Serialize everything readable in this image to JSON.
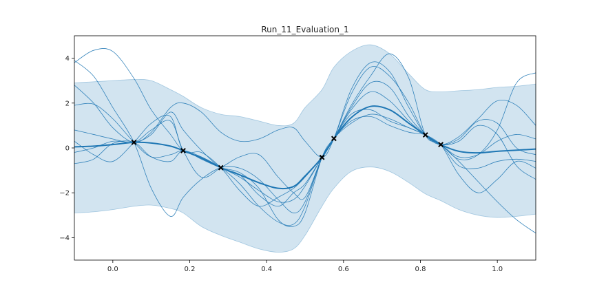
{
  "chart_data": {
    "type": "line",
    "title": "Run_11_Evaluation_1",
    "xlabel": "",
    "ylabel": "",
    "xlim": [
      -0.1,
      1.1
    ],
    "ylim": [
      -5.0,
      5.0
    ],
    "x_ticks": [
      "0.0",
      "0.2",
      "0.4",
      "0.6",
      "0.8",
      "1.0"
    ],
    "y_ticks": [
      "4",
      "2",
      "0",
      "−2",
      "−4"
    ],
    "grid": false,
    "legend": "none",
    "colors": {
      "line": "#1f77b4",
      "band": "#1f77b4",
      "marker": "#000000"
    },
    "observations": {
      "x": [
        0.055,
        0.183,
        0.281,
        0.544,
        0.575,
        0.813,
        0.853
      ],
      "y": [
        0.25,
        -0.12,
        -0.88,
        -0.42,
        0.42,
        0.58,
        0.15
      ]
    },
    "mean": {
      "x": [
        -0.1,
        -0.05,
        0.0,
        0.055,
        0.1,
        0.15,
        0.183,
        0.23,
        0.281,
        0.33,
        0.38,
        0.43,
        0.47,
        0.5,
        0.544,
        0.575,
        0.62,
        0.67,
        0.72,
        0.77,
        0.813,
        0.853,
        0.9,
        0.95,
        1.0,
        1.05,
        1.1
      ],
      "y": [
        0.05,
        0.08,
        0.15,
        0.25,
        0.22,
        0.08,
        -0.12,
        -0.45,
        -0.88,
        -1.2,
        -1.55,
        -1.8,
        -1.72,
        -1.25,
        -0.42,
        0.42,
        1.35,
        1.85,
        1.7,
        1.1,
        0.58,
        0.15,
        -0.15,
        -0.22,
        -0.15,
        -0.1,
        -0.05
      ]
    },
    "band": {
      "x": [
        -0.1,
        -0.05,
        0.0,
        0.055,
        0.1,
        0.15,
        0.183,
        0.23,
        0.281,
        0.33,
        0.38,
        0.43,
        0.47,
        0.5,
        0.544,
        0.575,
        0.62,
        0.67,
        0.72,
        0.77,
        0.813,
        0.853,
        0.9,
        0.95,
        1.0,
        1.05,
        1.1
      ],
      "upper": [
        2.9,
        2.95,
        3.0,
        3.05,
        3.0,
        2.6,
        2.3,
        1.8,
        1.5,
        1.4,
        1.2,
        1.0,
        1.1,
        1.8,
        2.6,
        3.6,
        4.3,
        4.6,
        4.2,
        3.3,
        2.6,
        2.5,
        2.55,
        2.6,
        2.7,
        2.75,
        2.85
      ],
      "lower": [
        -2.9,
        -2.85,
        -2.75,
        -2.6,
        -2.55,
        -2.7,
        -2.9,
        -3.5,
        -3.9,
        -4.2,
        -4.5,
        -4.65,
        -4.5,
        -3.9,
        -2.6,
        -1.8,
        -1.05,
        -0.85,
        -1.05,
        -1.55,
        -2.05,
        -2.35,
        -2.75,
        -3.0,
        -3.1,
        -3.05,
        -2.95
      ]
    },
    "samples": [
      {
        "x": [
          -0.1,
          -0.05,
          0.0,
          0.055,
          0.1,
          0.15,
          0.183,
          0.23,
          0.281,
          0.33,
          0.38,
          0.43,
          0.47,
          0.5,
          0.544,
          0.575,
          0.62,
          0.67,
          0.72,
          0.77,
          0.813,
          0.853,
          0.9,
          0.95,
          1.0,
          1.05,
          1.1
        ],
        "y": [
          3.8,
          4.35,
          4.3,
          3.1,
          1.7,
          0.6,
          -0.12,
          -0.4,
          -0.88,
          -1.3,
          -1.9,
          -2.4,
          -2.3,
          -1.7,
          -0.42,
          0.42,
          2.4,
          3.6,
          3.2,
          2.0,
          0.58,
          0.15,
          -0.6,
          -1.5,
          -2.4,
          -3.2,
          -3.8
        ]
      },
      {
        "x": [
          -0.1,
          -0.05,
          0.0,
          0.055,
          0.1,
          0.15,
          0.183,
          0.23,
          0.281,
          0.33,
          0.38,
          0.43,
          0.47,
          0.5,
          0.544,
          0.575,
          0.62,
          0.67,
          0.72,
          0.77,
          0.813,
          0.853,
          0.9,
          0.95,
          1.0,
          1.05,
          1.1
        ],
        "y": [
          3.9,
          3.2,
          1.8,
          0.25,
          -1.8,
          -3.05,
          -2.2,
          -1.4,
          -0.88,
          -0.9,
          -1.4,
          -2.3,
          -2.9,
          -2.4,
          -0.42,
          0.42,
          1.7,
          2.5,
          2.1,
          1.2,
          0.58,
          0.15,
          -0.5,
          -0.3,
          0.8,
          2.9,
          3.35
        ]
      },
      {
        "x": [
          -0.1,
          -0.05,
          0.0,
          0.055,
          0.1,
          0.15,
          0.183,
          0.23,
          0.281,
          0.33,
          0.38,
          0.43,
          0.47,
          0.5,
          0.544,
          0.575,
          0.62,
          0.67,
          0.72,
          0.77,
          0.813,
          0.853,
          0.9,
          0.95,
          1.0,
          1.05,
          1.1
        ],
        "y": [
          2.8,
          2.0,
          0.9,
          0.25,
          0.7,
          1.8,
          2.0,
          1.6,
          0.7,
          0.3,
          0.4,
          0.8,
          0.9,
          0.3,
          -0.42,
          0.42,
          2.6,
          3.8,
          3.4,
          1.8,
          0.58,
          0.15,
          0.5,
          1.3,
          2.1,
          1.9,
          1.0
        ]
      },
      {
        "x": [
          -0.1,
          -0.05,
          0.0,
          0.055,
          0.1,
          0.15,
          0.183,
          0.23,
          0.281,
          0.33,
          0.38,
          0.43,
          0.47,
          0.5,
          0.544,
          0.575,
          0.62,
          0.67,
          0.72,
          0.77,
          0.813,
          0.853,
          0.9,
          0.95,
          1.0,
          1.05,
          1.1
        ],
        "y": [
          1.9,
          1.95,
          1.3,
          0.25,
          -0.4,
          -0.3,
          -0.12,
          -0.4,
          -0.88,
          -1.6,
          -2.6,
          -3.3,
          -3.4,
          -2.6,
          -0.42,
          0.42,
          1.9,
          3.2,
          4.2,
          3.1,
          0.58,
          0.15,
          -1.2,
          -2.0,
          -1.4,
          -0.6,
          -0.9
        ]
      },
      {
        "x": [
          -0.1,
          -0.05,
          0.0,
          0.055,
          0.1,
          0.15,
          0.183,
          0.23,
          0.281,
          0.33,
          0.38,
          0.43,
          0.47,
          0.5,
          0.544,
          0.575,
          0.62,
          0.67,
          0.72,
          0.77,
          0.813,
          0.853,
          0.9,
          0.95,
          1.0,
          1.05,
          1.1
        ],
        "y": [
          0.3,
          -0.3,
          -0.6,
          0.25,
          1.1,
          1.4,
          -0.12,
          -0.2,
          -0.88,
          -1.9,
          -2.6,
          -2.2,
          -1.8,
          -1.3,
          -0.42,
          0.42,
          1.5,
          1.7,
          1.2,
          0.9,
          0.58,
          0.15,
          0.4,
          1.2,
          1.1,
          0.0,
          -0.3
        ]
      },
      {
        "x": [
          -0.1,
          -0.05,
          0.0,
          0.055,
          0.1,
          0.15,
          0.183,
          0.23,
          0.281,
          0.33,
          0.38,
          0.43,
          0.47,
          0.5,
          0.544,
          0.575,
          0.62,
          0.67,
          0.72,
          0.77,
          0.813,
          0.853,
          0.9,
          0.95,
          1.0,
          1.05,
          1.1
        ],
        "y": [
          -0.7,
          -0.5,
          0.2,
          0.25,
          -0.4,
          -0.6,
          -0.12,
          -0.5,
          -0.88,
          -1.1,
          -1.8,
          -3.2,
          -3.5,
          -2.9,
          -0.42,
          0.42,
          1.2,
          1.4,
          1.0,
          0.7,
          0.58,
          0.15,
          -0.8,
          -0.9,
          -0.6,
          -0.5,
          -0.6
        ]
      },
      {
        "x": [
          -0.1,
          -0.05,
          0.0,
          0.055,
          0.1,
          0.15,
          0.183,
          0.23,
          0.281,
          0.33,
          0.38,
          0.43,
          0.47,
          0.5,
          0.544,
          0.575,
          0.62,
          0.67,
          0.72,
          0.77,
          0.813,
          0.853,
          0.9,
          0.95,
          1.0,
          1.05,
          1.1
        ],
        "y": [
          0.8,
          0.6,
          0.4,
          0.25,
          0.8,
          1.2,
          -0.12,
          -1.3,
          -0.88,
          -0.4,
          -0.3,
          -1.3,
          -2.0,
          -2.2,
          -0.42,
          0.42,
          1.8,
          2.9,
          2.7,
          1.4,
          0.58,
          0.15,
          0.3,
          1.0,
          0.6,
          -0.8,
          -1.4
        ]
      },
      {
        "x": [
          -0.1,
          -0.05,
          0.0,
          0.055,
          0.1,
          0.15,
          0.183,
          0.23,
          0.281,
          0.33,
          0.38,
          0.43,
          0.47,
          0.5,
          0.544,
          0.575,
          0.62,
          0.67,
          0.72,
          0.77,
          0.813,
          0.853,
          0.9,
          0.95,
          1.0,
          1.05,
          1.1
        ],
        "y": [
          -0.2,
          0.0,
          0.3,
          0.25,
          0.6,
          1.6,
          0.8,
          -0.1,
          -0.88,
          -1.2,
          -2.1,
          -2.6,
          -2.0,
          -1.6,
          -0.42,
          0.42,
          1.1,
          1.5,
          1.3,
          0.9,
          0.58,
          0.15,
          -0.4,
          -0.3,
          0.3,
          0.6,
          0.4
        ]
      }
    ]
  }
}
